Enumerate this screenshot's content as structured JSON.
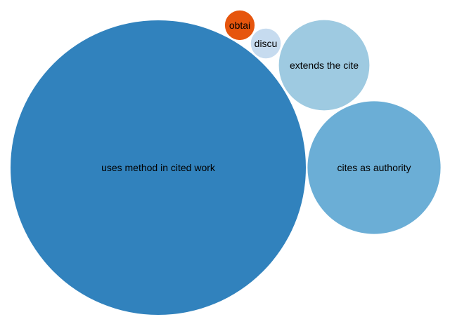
{
  "chart_data": {
    "type": "bubble",
    "bubbles": [
      {
        "label": "uses method in cited work",
        "value": 100,
        "color": "#3182bd"
      },
      {
        "label": "cites as authority",
        "value": 20.3,
        "color": "#6baed6"
      },
      {
        "label": "extends the cite",
        "value": 9.4,
        "color": "#9ecae1"
      },
      {
        "label": "discu",
        "value": 1.03,
        "color": "#c6dbef"
      },
      {
        "label": "obtai",
        "value": 1.01,
        "color": "#e6550d"
      }
    ]
  }
}
